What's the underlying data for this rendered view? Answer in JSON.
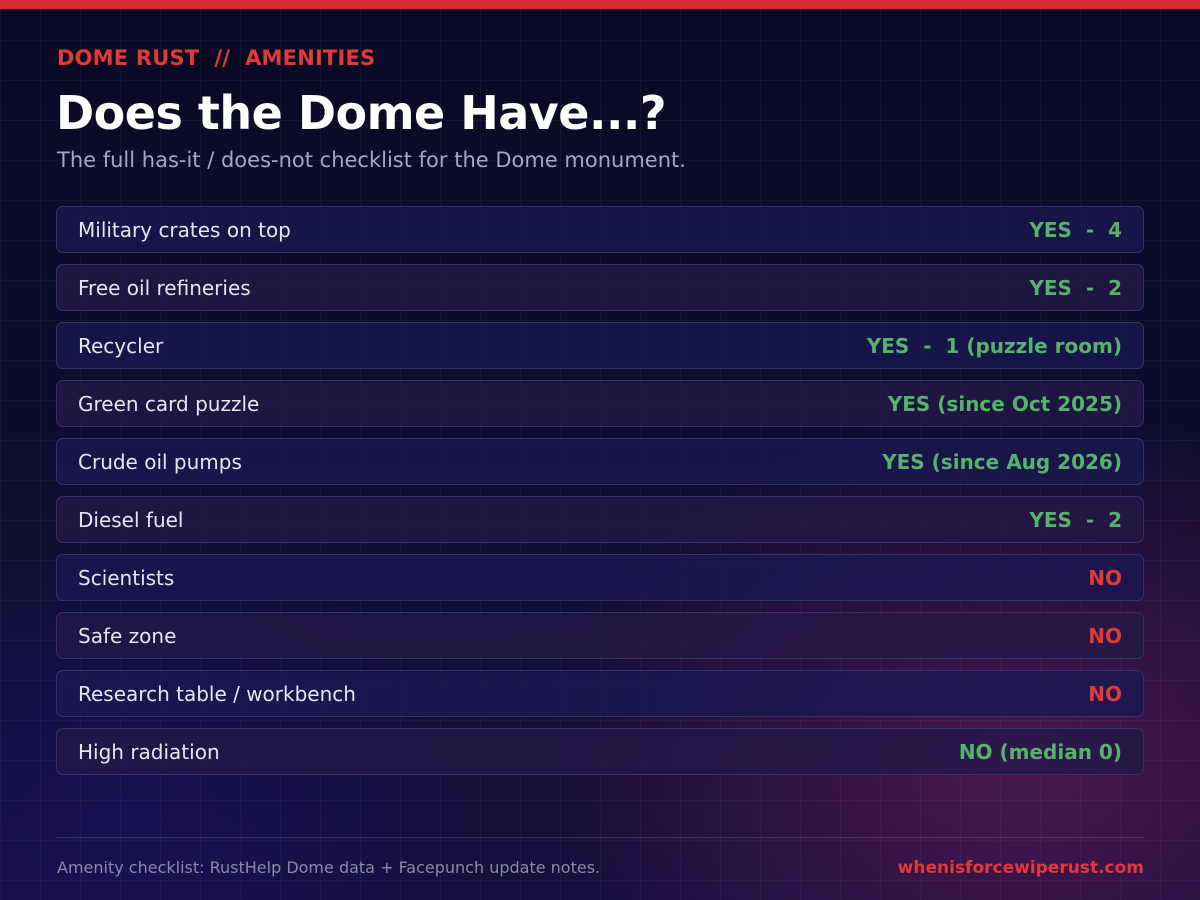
{
  "header": {
    "kicker": "DOME RUST  //  AMENITIES",
    "title": "Does the Dome Have...?",
    "subtitle": "The full has-it / does-not checklist for the Dome monument."
  },
  "colors": {
    "accent": "#d42f2f",
    "yes": "#56b36a",
    "no": "#e23a36"
  },
  "checklist": [
    {
      "label": "Military crates on top",
      "value": "YES  -  4",
      "status": "yes"
    },
    {
      "label": "Free oil refineries",
      "value": "YES  -  2",
      "status": "yes"
    },
    {
      "label": "Recycler",
      "value": "YES  -  1 (puzzle room)",
      "status": "yes"
    },
    {
      "label": "Green card puzzle",
      "value": "YES (since Oct 2025)",
      "status": "yes"
    },
    {
      "label": "Crude oil pumps",
      "value": "YES (since Aug 2026)",
      "status": "yes"
    },
    {
      "label": "Diesel fuel",
      "value": "YES  -  2",
      "status": "yes"
    },
    {
      "label": "Scientists",
      "value": "NO",
      "status": "no"
    },
    {
      "label": "Safe zone",
      "value": "NO",
      "status": "no"
    },
    {
      "label": "Research table / workbench",
      "value": "NO",
      "status": "no"
    },
    {
      "label": "High radiation",
      "value": "NO (median 0)",
      "status": "yes"
    }
  ],
  "footer": {
    "source": "Amenity checklist: RustHelp Dome data + Facepunch update notes.",
    "site": "whenisforcewiperust.com"
  }
}
